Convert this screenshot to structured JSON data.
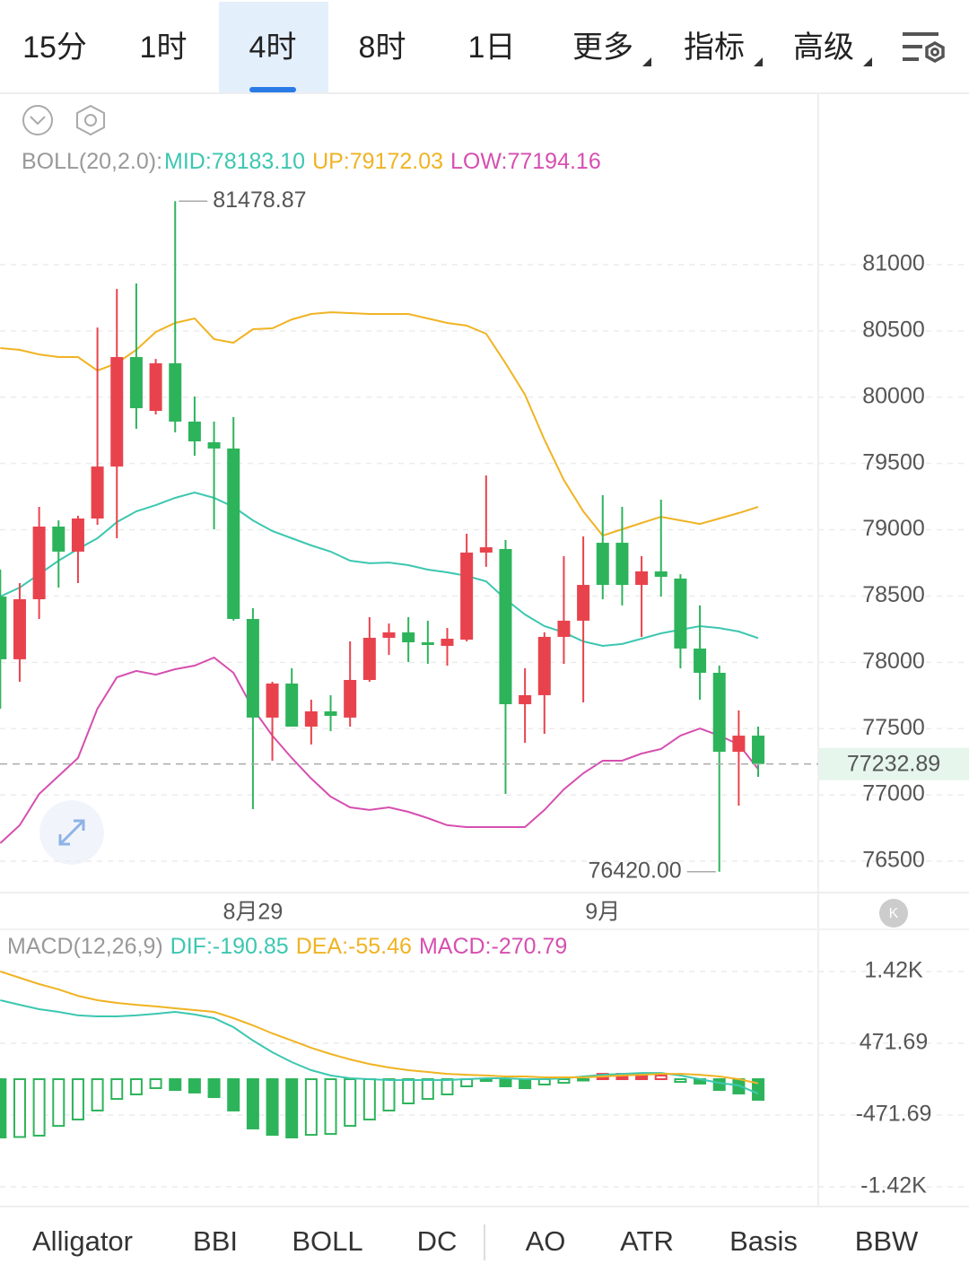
{
  "tabs": {
    "items": [
      "15分",
      "1时",
      "4时",
      "8时",
      "1日",
      "更多",
      "指标",
      "高级"
    ],
    "active": 2
  },
  "bottom_tabs": {
    "items": [
      "Alligator",
      "BBI",
      "BOLL",
      "DC",
      "AO",
      "ATR",
      "Basis",
      "BBW"
    ],
    "active": 2
  },
  "chart_data": [
    {
      "type": "candlestick",
      "indicator": "BOLL(20,2.0):",
      "up_color": "#e8434d",
      "down_color": "#2db45b",
      "categories": [
        null,
        null,
        null,
        null,
        null,
        null,
        null,
        null,
        null,
        null,
        null,
        null,
        null,
        "8月29",
        null,
        null,
        null,
        null,
        null,
        null,
        null,
        null,
        null,
        null,
        null,
        null,
        null,
        null,
        null,
        null,
        null,
        "9月",
        null,
        null,
        null,
        null,
        null,
        null,
        null,
        null
      ],
      "open": [
        78496,
        78023,
        78476,
        79024,
        78835,
        79085,
        79477,
        80303,
        79897,
        80256,
        79816,
        79660,
        79613,
        78327,
        77583,
        77840,
        77515,
        77630,
        77583,
        77867,
        78185,
        78226,
        78151,
        78124,
        78171,
        78828,
        78855,
        77684,
        77752,
        78192,
        78314,
        78902,
        78902,
        78584,
        78686,
        78632,
        78104,
        77921,
        77325,
        77447
      ],
      "high": [
        78699,
        78598,
        79173,
        79071,
        79105,
        80526,
        80817,
        80858,
        80289,
        81478.87,
        80005,
        79816,
        79850,
        78408,
        77853,
        77955,
        77718,
        77752,
        78158,
        78341,
        78293,
        78341,
        78314,
        78259,
        78970,
        79410,
        78923,
        77955,
        78226,
        78801,
        78950,
        79261,
        79173,
        78801,
        79227,
        78665,
        78429,
        77975,
        77637,
        77515
      ],
      "low": [
        77650,
        77853,
        78327,
        78564,
        78598,
        79038,
        78936,
        79762,
        79870,
        79735,
        79559,
        79004,
        78314,
        76892,
        77258,
        77515,
        77380,
        77481,
        77515,
        77853,
        78056,
        78002,
        77989,
        77975,
        78158,
        78720,
        77007,
        77393,
        77461,
        77989,
        77698,
        78476,
        78429,
        78192,
        78496,
        77955,
        77718,
        76420,
        76919,
        77136
      ],
      "close": [
        78023,
        78476,
        79024,
        78835,
        79085,
        79477,
        80303,
        79917,
        80256,
        79816,
        79667,
        79613,
        78327,
        77583,
        77840,
        77515,
        77630,
        77596,
        77867,
        78185,
        78226,
        78151,
        78131,
        78178,
        78828,
        78868,
        77684,
        77752,
        78192,
        78314,
        78584,
        78584,
        78584,
        78686,
        78645,
        78104,
        77921,
        77325,
        77447,
        77232.89
      ],
      "series": [
        {
          "name": "MID:78183.10",
          "color": "#3cc7b0",
          "values": [
            78496,
            78564,
            78665,
            78767,
            78855,
            78936,
            79058,
            79139,
            79186,
            79241,
            79281,
            79241,
            79173,
            79071,
            78990,
            78936,
            78882,
            78835,
            78767,
            78747,
            78753,
            78733,
            78699,
            78679,
            78652,
            78611,
            78476,
            78361,
            78273,
            78226,
            78158,
            78124,
            78138,
            78178,
            78219,
            78246,
            78273,
            78259,
            78232,
            78183.1
          ]
        },
        {
          "name": "UP:79172.03",
          "color": "#f0b323",
          "values": [
            80371,
            80357,
            80323,
            80303,
            80303,
            80201,
            80256,
            80357,
            80492,
            80560,
            80594,
            80438,
            80411,
            80513,
            80520,
            80587,
            80628,
            80641,
            80635,
            80628,
            80628,
            80628,
            80594,
            80560,
            80540,
            80479,
            80256,
            80019,
            79680,
            79376,
            79139,
            78956,
            79004,
            79051,
            79098,
            79071,
            79044,
            79085,
            79126,
            79172.03
          ]
        },
        {
          "name": "LOW:77194.16",
          "color": "#d64fb0",
          "values": [
            76635,
            76771,
            77007,
            77143,
            77278,
            77650,
            77887,
            77935,
            77907,
            77948,
            77975,
            78036,
            77921,
            77650,
            77447,
            77278,
            77123,
            76987,
            76906,
            76886,
            76906,
            76872,
            76825,
            76771,
            76757,
            76757,
            76757,
            76757,
            76886,
            77041,
            77163,
            77258,
            77258,
            77312,
            77346,
            77447,
            77501,
            77447,
            77380,
            77194.16
          ]
        }
      ],
      "ylim": [
        76263,
        82286
      ],
      "yticks": [
        81000,
        80500,
        80000,
        79500,
        79000,
        78500,
        78000,
        77500,
        77000,
        76500
      ],
      "grid": true,
      "high_marker": 81478.87,
      "low_marker": {
        "value": 76420,
        "label": "76420.00"
      },
      "last_price": 77232.89
    },
    {
      "type": "macd",
      "indicator": "MACD(12,26,9)",
      "up_color": "#e8434d",
      "down_color": "#2db45b",
      "histogram": {
        "name": "MACD:-270.79",
        "color": "#d64fb0",
        "values": [
          -766,
          -760,
          -742,
          -614,
          -530,
          -412,
          -260,
          -200,
          -118,
          -142,
          -176,
          -236,
          -412,
          -648,
          -732,
          -766,
          -732,
          -720,
          -614,
          -530,
          -412,
          -318,
          -260,
          -200,
          -94,
          -24,
          -94,
          -118,
          -70,
          -48,
          -6,
          70,
          70,
          70,
          48,
          -36,
          -58,
          -142,
          -188,
          -270.79
        ]
      },
      "series": [
        {
          "name": "DIF:-190.85",
          "color": "#3cc7b0",
          "values": [
            1038,
            978,
            920,
            884,
            838,
            826,
            826,
            838,
            860,
            884,
            850,
            802,
            684,
            508,
            354,
            224,
            118,
            48,
            12,
            0,
            -12,
            -12,
            -12,
            -12,
            0,
            12,
            12,
            0,
            0,
            12,
            36,
            58,
            70,
            82,
            82,
            48,
            0,
            -48,
            -82,
            -190.85
          ]
        },
        {
          "name": "DEA:-55.46",
          "color": "#f0b323",
          "values": [
            1416,
            1332,
            1250,
            1180,
            1096,
            1038,
            1002,
            978,
            956,
            932,
            908,
            884,
            802,
            708,
            602,
            508,
            412,
            330,
            260,
            200,
            154,
            118,
            94,
            70,
            58,
            48,
            36,
            36,
            24,
            24,
            24,
            36,
            48,
            58,
            70,
            70,
            58,
            36,
            0,
            -55.46
          ]
        }
      ],
      "ylim": [
        -1615,
        1922
      ],
      "yticks": [
        {
          "value": 1415.07,
          "label": "1.42K"
        },
        471.69,
        -471.69,
        {
          "value": -1415.07,
          "label": "-1.42K"
        }
      ],
      "grid": true
    }
  ]
}
